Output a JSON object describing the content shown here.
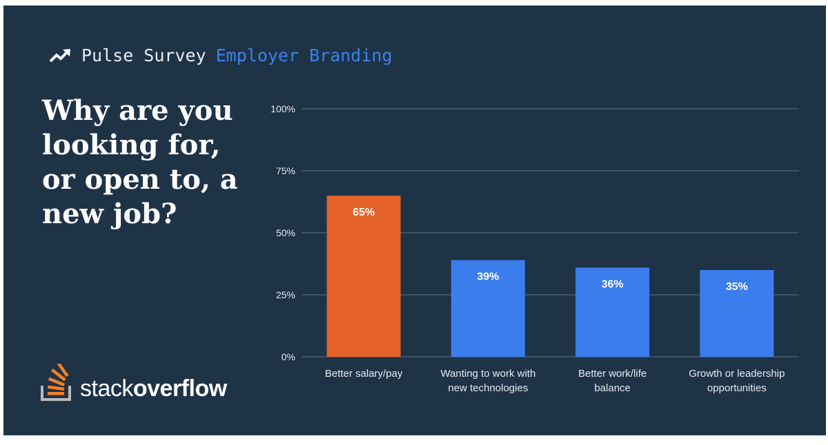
{
  "header": {
    "icon": "trending-up-icon",
    "label": "Pulse Survey",
    "topic": "Employer Branding"
  },
  "question": "Why are you looking for, or open to, a new job?",
  "logo": {
    "text_light": "stack",
    "text_bold": "overflow"
  },
  "colors": {
    "background": "#1f3347",
    "highlight": "#e5622a",
    "bar": "#3b7ded",
    "grid": "#4a5e70"
  },
  "chart_data": {
    "type": "bar",
    "categories": [
      [
        "Better salary/pay"
      ],
      [
        "Wanting to work with",
        "new technologies"
      ],
      [
        "Better work/life",
        "balance"
      ],
      [
        "Growth or leadership",
        "opportunities"
      ]
    ],
    "values": [
      65,
      39,
      36,
      35
    ],
    "data_labels": [
      "65%",
      "39%",
      "36%",
      "35%"
    ],
    "highlight_index": 0,
    "ylim": [
      0,
      100
    ],
    "yticks": [
      0,
      25,
      50,
      75,
      100
    ],
    "ytick_labels": [
      "0%",
      "25%",
      "50%",
      "75%",
      "100%"
    ],
    "grid": true
  }
}
